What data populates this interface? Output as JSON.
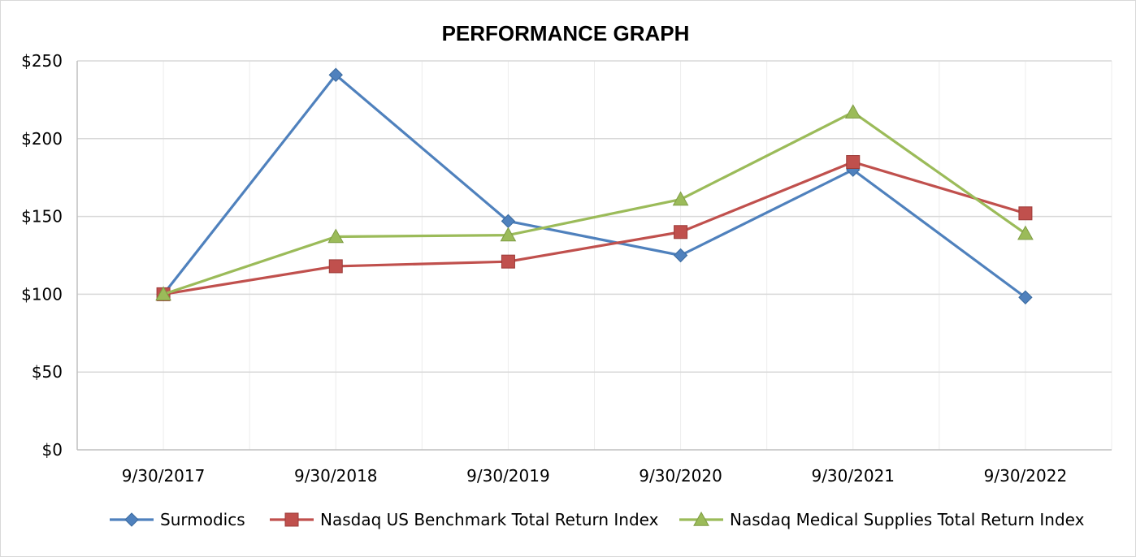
{
  "chart_data": {
    "type": "line",
    "title": "PERFORMANCE GRAPH",
    "xlabel": "",
    "ylabel": "",
    "categories": [
      "9/30/2017",
      "9/30/2018",
      "9/30/2019",
      "9/30/2020",
      "9/30/2021",
      "9/30/2022"
    ],
    "ylim": [
      0,
      250
    ],
    "y_ticks": [
      0,
      50,
      100,
      150,
      200,
      250
    ],
    "y_tick_labels": [
      "$0",
      "$50",
      "$100",
      "$150",
      "$200",
      "$250"
    ],
    "grid": true,
    "legend_position": "bottom",
    "series": [
      {
        "name": "Surmodics",
        "color": "#4f81bd",
        "marker": "diamond",
        "values": [
          100,
          241,
          147,
          125,
          180,
          98
        ]
      },
      {
        "name": "Nasdaq US Benchmark Total Return Index",
        "color": "#c0504d",
        "marker": "square",
        "values": [
          100,
          118,
          121,
          140,
          185,
          152
        ]
      },
      {
        "name": "Nasdaq Medical Supplies Total Return Index",
        "color": "#9bbb59",
        "marker": "triangle",
        "values": [
          100,
          137,
          138,
          161,
          217,
          139
        ]
      }
    ]
  }
}
